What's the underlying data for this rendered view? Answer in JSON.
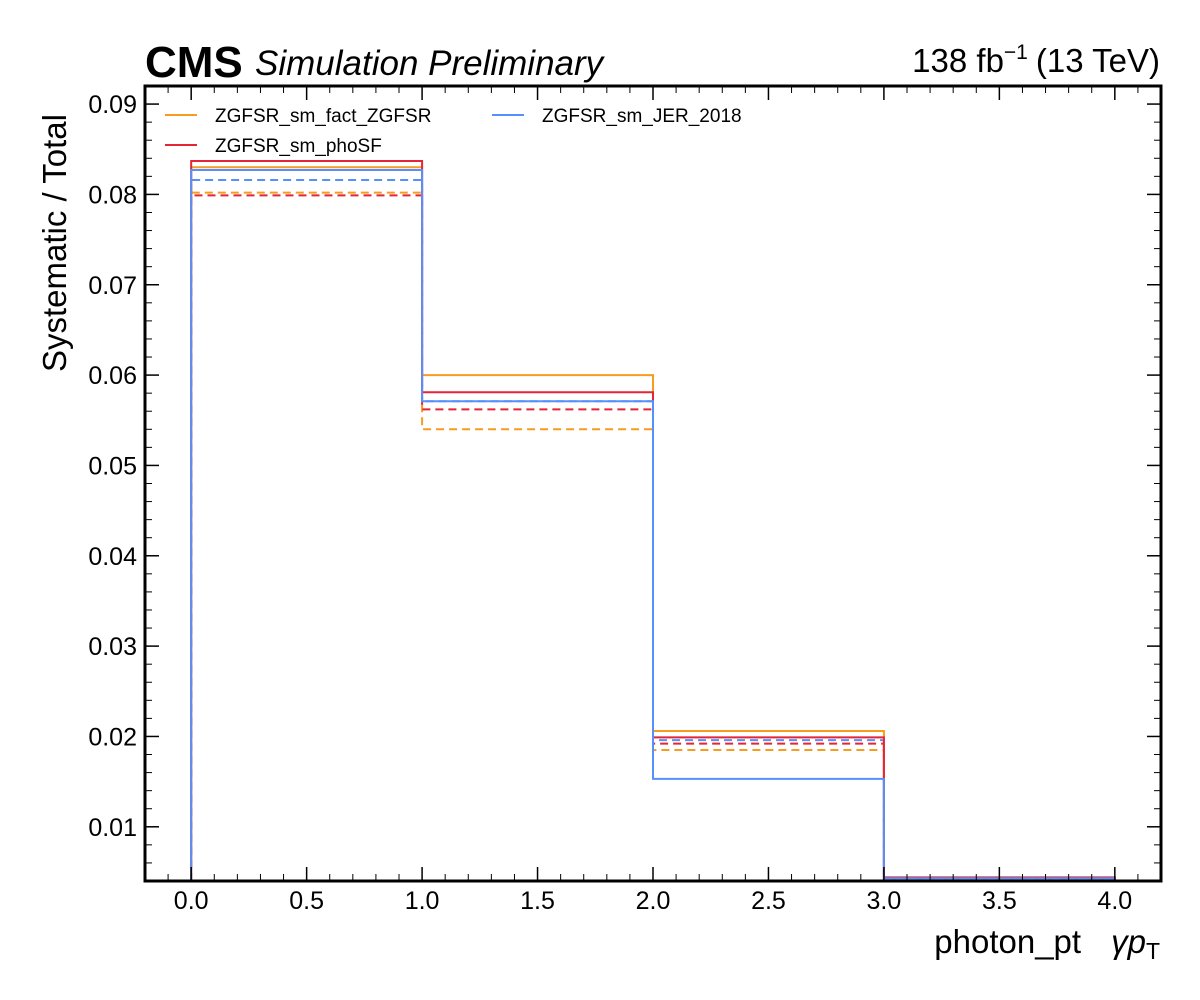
{
  "header": {
    "experiment": "CMS",
    "status": "Simulation Preliminary",
    "lumi_value": "138 fb",
    "lumi_exponent": "−1",
    "energy": "(13 TeV)"
  },
  "chart_data": {
    "type": "step",
    "xlabel": "photon_pt",
    "xlabel_symbol_main": "γp",
    "xlabel_symbol_sub": "T",
    "ylabel": "Systematic / Total",
    "xlim": [
      -0.2,
      4.2
    ],
    "ylim": [
      0.004,
      0.092
    ],
    "x_ticks": [
      0.0,
      0.5,
      1.0,
      1.5,
      2.0,
      2.5,
      3.0,
      3.5,
      4.0
    ],
    "x_tick_labels": [
      "0.0",
      "0.5",
      "1.0",
      "1.5",
      "2.0",
      "2.5",
      "3.0",
      "3.5",
      "4.0"
    ],
    "y_ticks": [
      0.01,
      0.02,
      0.03,
      0.04,
      0.05,
      0.06,
      0.07,
      0.08,
      0.09
    ],
    "y_tick_labels": [
      "0.01",
      "0.02",
      "0.03",
      "0.04",
      "0.05",
      "0.06",
      "0.07",
      "0.08",
      "0.09"
    ],
    "bin_edges": [
      0,
      1,
      2,
      3,
      4
    ],
    "legend_position": "top-left",
    "series": [
      {
        "name": "ZGFSR_sm_fact_ZGFSR",
        "style": "solid",
        "color": "#f89c20",
        "values": [
          0.083,
          0.06,
          0.0206,
          0.0043
        ]
      },
      {
        "name": "ZGFSR_sm_fact_ZGFSR",
        "style": "dashed",
        "color": "#f89c20",
        "values": [
          0.0802,
          0.054,
          0.0185,
          0.0041
        ]
      },
      {
        "name": "ZGFSR_sm_phoSF",
        "style": "solid",
        "color": "#e42536",
        "values": [
          0.0837,
          0.0581,
          0.0199,
          0.0044
        ]
      },
      {
        "name": "ZGFSR_sm_phoSF",
        "style": "dashed",
        "color": "#e42536",
        "values": [
          0.0799,
          0.0562,
          0.0192,
          0.0042
        ]
      },
      {
        "name": "ZGFSR_sm_JER_2018",
        "style": "solid",
        "color": "#5790fc",
        "values": [
          0.0827,
          0.0571,
          0.0153,
          0.0043
        ]
      },
      {
        "name": "ZGFSR_sm_JER_2018",
        "style": "dashed",
        "color": "#5790fc",
        "values": [
          0.0816,
          0.0571,
          0.0196,
          0.0042
        ]
      }
    ],
    "legend": [
      {
        "label": "ZGFSR_sm_fact_ZGFSR",
        "color": "#f89c20"
      },
      {
        "label": "ZGFSR_sm_phoSF",
        "color": "#e42536"
      },
      {
        "label": "ZGFSR_sm_JER_2018",
        "color": "#5790fc"
      }
    ]
  }
}
